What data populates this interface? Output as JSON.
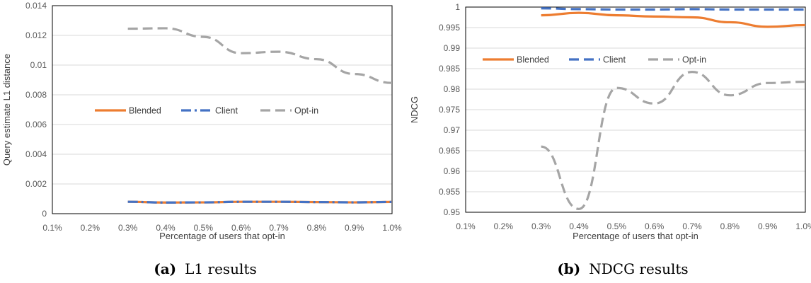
{
  "colors": {
    "blended": "#ED7D31",
    "client": "#4472C4",
    "optin": "#A5A5A5",
    "grid": "#D9D9D9",
    "frame": "#000000"
  },
  "chart_data": [
    {
      "type": "line",
      "id": "a",
      "caption_tag": "(a)",
      "caption_text": "L1 results",
      "xlabel": "Percentage of users that opt-in",
      "ylabel": "Query estimate L1 distance",
      "categories": [
        "0.1%",
        "0.2%",
        "0.3%",
        "0.4%",
        "0.5%",
        "0.6%",
        "0.7%",
        "0.8%",
        "0.9%",
        "1.0%"
      ],
      "yticks": [
        0,
        0.002,
        0.004,
        0.006,
        0.008,
        0.01,
        0.012,
        0.014
      ],
      "ytick_labels": [
        "0",
        "0.002",
        "0.004",
        "0.006",
        "0.008",
        "0.01",
        "0.012",
        "0.014"
      ],
      "ylim": [
        0,
        0.014
      ],
      "grid": "horizontal",
      "legend_position": "center",
      "series": [
        {
          "name": "Blended",
          "style": "solid",
          "values": [
            null,
            null,
            0.0008,
            0.00075,
            0.00076,
            0.0008,
            0.0008,
            0.00078,
            0.00076,
            0.00079
          ]
        },
        {
          "name": "Client",
          "style": "dash-dot",
          "values": [
            null,
            null,
            0.0008,
            0.00075,
            0.00076,
            0.0008,
            0.0008,
            0.00078,
            0.00076,
            0.00079
          ]
        },
        {
          "name": "Opt-in",
          "style": "dash",
          "values": [
            null,
            null,
            0.01245,
            0.01248,
            0.0119,
            0.0108,
            0.0109,
            0.0104,
            0.0094,
            0.0088
          ]
        }
      ]
    },
    {
      "type": "line",
      "id": "b",
      "caption_tag": "(b)",
      "caption_text": "NDCG results",
      "xlabel": "Percentage of users that opt-in",
      "ylabel": "NDCG",
      "categories": [
        "0.1%",
        "0.2%",
        "0.3%",
        "0.4%",
        "0.5%",
        "0.6%",
        "0.7%",
        "0.8%",
        "0.9%",
        "1.0%"
      ],
      "yticks": [
        0.95,
        0.955,
        0.96,
        0.965,
        0.97,
        0.975,
        0.98,
        0.985,
        0.99,
        0.995,
        1
      ],
      "ytick_labels": [
        "0.95",
        "0.955",
        "0.96",
        "0.965",
        "0.97",
        "0.975",
        "0.98",
        "0.985",
        "0.99",
        "0.995",
        "1"
      ],
      "ylim": [
        0.95,
        1
      ],
      "grid": "horizontal",
      "legend_position": "upper-center",
      "series": [
        {
          "name": "Blended",
          "style": "solid",
          "values": [
            null,
            null,
            0.998,
            0.9986,
            0.998,
            0.9977,
            0.9975,
            0.9963,
            0.9952,
            0.9956
          ]
        },
        {
          "name": "Client",
          "style": "dash",
          "values": [
            null,
            null,
            0.9997,
            0.9995,
            0.9994,
            0.9994,
            0.9995,
            0.9994,
            0.9994,
            0.9994
          ]
        },
        {
          "name": "Opt-in",
          "style": "dash",
          "values": [
            null,
            null,
            0.966,
            0.9508,
            0.9803,
            0.9765,
            0.9842,
            0.9785,
            0.9815,
            0.9818
          ]
        }
      ]
    }
  ]
}
